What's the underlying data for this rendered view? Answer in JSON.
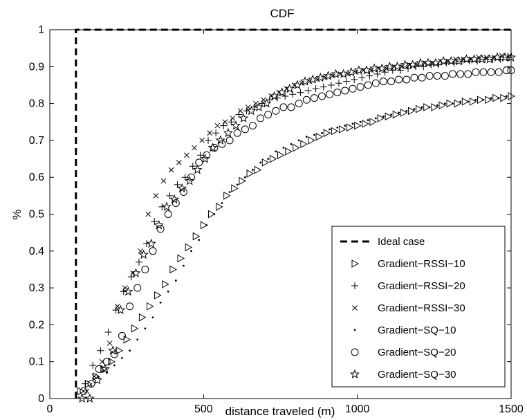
{
  "chart_data": {
    "type": "scatter",
    "title": "CDF",
    "xlabel": "distance traveled (m)",
    "ylabel": "%",
    "xlim": [
      0,
      1500
    ],
    "ylim": [
      0,
      1
    ],
    "xticks": [
      "0",
      "500",
      "1000",
      "1500"
    ],
    "yticks": [
      "0",
      "0.1",
      "0.2",
      "0.3",
      "0.4",
      "0.5",
      "0.6",
      "0.7",
      "0.8",
      "0.9",
      "1"
    ],
    "grid": false,
    "legend_position": "bottom-right",
    "series": [
      {
        "name": "Ideal case",
        "marker": "dashed-line",
        "x": [
          85,
          85,
          1500
        ],
        "y": [
          0,
          1,
          1
        ]
      },
      {
        "name": "Gradient−RSSI−10",
        "marker": "triangle-right",
        "x": [
          100,
          125,
          150,
          175,
          200,
          225,
          250,
          275,
          300,
          325,
          350,
          375,
          400,
          425,
          450,
          475,
          500,
          525,
          550,
          575,
          600,
          625,
          650,
          675,
          700,
          725,
          750,
          775,
          800,
          825,
          850,
          875,
          900,
          925,
          950,
          975,
          1000,
          1025,
          1050,
          1075,
          1100,
          1125,
          1150,
          1175,
          1200,
          1225,
          1250,
          1275,
          1300,
          1325,
          1350,
          1375,
          1400,
          1425,
          1450,
          1475,
          1500
        ],
        "y": [
          0.02,
          0.04,
          0.06,
          0.08,
          0.1,
          0.13,
          0.16,
          0.19,
          0.22,
          0.25,
          0.28,
          0.31,
          0.35,
          0.38,
          0.41,
          0.44,
          0.47,
          0.5,
          0.52,
          0.55,
          0.57,
          0.59,
          0.61,
          0.62,
          0.64,
          0.65,
          0.66,
          0.67,
          0.68,
          0.69,
          0.7,
          0.71,
          0.72,
          0.725,
          0.73,
          0.735,
          0.74,
          0.745,
          0.75,
          0.76,
          0.765,
          0.77,
          0.775,
          0.78,
          0.785,
          0.79,
          0.79,
          0.795,
          0.8,
          0.8,
          0.805,
          0.805,
          0.81,
          0.81,
          0.815,
          0.815,
          0.82
        ]
      },
      {
        "name": "Gradient−RSSI−20",
        "marker": "plus",
        "x": [
          115,
          140,
          165,
          190,
          215,
          240,
          265,
          290,
          315,
          340,
          365,
          390,
          415,
          440,
          465,
          490,
          515,
          540,
          565,
          590,
          615,
          640,
          665,
          690,
          715,
          740,
          765,
          790,
          815,
          840,
          865,
          890,
          915,
          940,
          965,
          990,
          1015,
          1040,
          1065,
          1090,
          1115,
          1140,
          1165,
          1190,
          1215,
          1240,
          1265,
          1290,
          1315,
          1340,
          1365,
          1390,
          1415,
          1440,
          1465,
          1490
        ],
        "y": [
          0.04,
          0.09,
          0.13,
          0.18,
          0.24,
          0.29,
          0.33,
          0.37,
          0.42,
          0.48,
          0.52,
          0.55,
          0.58,
          0.6,
          0.63,
          0.66,
          0.7,
          0.72,
          0.74,
          0.75,
          0.77,
          0.78,
          0.79,
          0.8,
          0.81,
          0.815,
          0.82,
          0.825,
          0.83,
          0.835,
          0.84,
          0.845,
          0.85,
          0.855,
          0.86,
          0.865,
          0.87,
          0.875,
          0.88,
          0.885,
          0.89,
          0.89,
          0.895,
          0.9,
          0.9,
          0.905,
          0.905,
          0.91,
          0.91,
          0.915,
          0.915,
          0.915,
          0.92,
          0.92,
          0.92,
          0.925
        ]
      },
      {
        "name": "Gradient−RSSI−30",
        "marker": "x",
        "x": [
          120,
          145,
          170,
          195,
          220,
          245,
          270,
          295,
          320,
          345,
          370,
          395,
          420,
          445,
          470,
          495,
          520,
          545,
          570,
          595,
          620,
          645,
          670,
          695,
          720,
          745,
          770,
          795,
          820,
          845,
          870,
          895,
          920,
          945,
          970,
          995,
          1020,
          1045,
          1070,
          1095,
          1120,
          1145,
          1170,
          1195,
          1220,
          1245,
          1270,
          1295,
          1320,
          1345,
          1370,
          1395,
          1420,
          1445,
          1470,
          1495
        ],
        "y": [
          0.02,
          0.06,
          0.1,
          0.15,
          0.25,
          0.3,
          0.34,
          0.4,
          0.5,
          0.55,
          0.59,
          0.62,
          0.64,
          0.66,
          0.68,
          0.7,
          0.72,
          0.74,
          0.75,
          0.76,
          0.78,
          0.79,
          0.8,
          0.81,
          0.82,
          0.83,
          0.84,
          0.85,
          0.855,
          0.86,
          0.865,
          0.87,
          0.875,
          0.88,
          0.88,
          0.885,
          0.89,
          0.89,
          0.895,
          0.895,
          0.9,
          0.9,
          0.905,
          0.905,
          0.91,
          0.91,
          0.915,
          0.915,
          0.92,
          0.92,
          0.92,
          0.925,
          0.925,
          0.925,
          0.93,
          0.93
        ]
      },
      {
        "name": "Gradient−SQ−10",
        "marker": "dot",
        "x": [
          110,
          135,
          160,
          185,
          210,
          235,
          260,
          285,
          310,
          335,
          360,
          385,
          410,
          435,
          460,
          485,
          510,
          535,
          560,
          585,
          610,
          635,
          660,
          685,
          710,
          735,
          760,
          785,
          810,
          835,
          860,
          885,
          910,
          935,
          960,
          985,
          1010,
          1035,
          1060,
          1085,
          1110,
          1135,
          1160,
          1185,
          1210,
          1235,
          1260,
          1285,
          1310,
          1335,
          1360,
          1385,
          1410,
          1435,
          1460,
          1485
        ],
        "y": [
          0.02,
          0.035,
          0.055,
          0.07,
          0.09,
          0.11,
          0.13,
          0.16,
          0.19,
          0.22,
          0.26,
          0.29,
          0.32,
          0.36,
          0.4,
          0.43,
          0.47,
          0.5,
          0.53,
          0.56,
          0.58,
          0.6,
          0.62,
          0.64,
          0.65,
          0.67,
          0.68,
          0.69,
          0.7,
          0.71,
          0.715,
          0.72,
          0.73,
          0.735,
          0.74,
          0.745,
          0.75,
          0.755,
          0.76,
          0.765,
          0.77,
          0.775,
          0.78,
          0.785,
          0.79,
          0.79,
          0.795,
          0.8,
          0.8,
          0.805,
          0.805,
          0.81,
          0.81,
          0.815,
          0.815,
          0.82
        ]
      },
      {
        "name": "Gradient−SQ−20",
        "marker": "circle",
        "x": [
          110,
          135,
          160,
          185,
          210,
          235,
          260,
          285,
          310,
          335,
          360,
          385,
          410,
          435,
          460,
          485,
          510,
          535,
          560,
          585,
          610,
          635,
          660,
          685,
          710,
          735,
          760,
          785,
          810,
          835,
          860,
          885,
          910,
          935,
          960,
          985,
          1010,
          1035,
          1060,
          1085,
          1110,
          1135,
          1160,
          1185,
          1210,
          1235,
          1260,
          1285,
          1310,
          1335,
          1360,
          1385,
          1410,
          1435,
          1460,
          1485,
          1500
        ],
        "y": [
          0.02,
          0.04,
          0.08,
          0.1,
          0.12,
          0.17,
          0.25,
          0.3,
          0.35,
          0.4,
          0.46,
          0.5,
          0.53,
          0.56,
          0.6,
          0.64,
          0.66,
          0.68,
          0.69,
          0.7,
          0.72,
          0.73,
          0.74,
          0.76,
          0.77,
          0.78,
          0.79,
          0.79,
          0.8,
          0.81,
          0.815,
          0.82,
          0.825,
          0.83,
          0.835,
          0.84,
          0.845,
          0.85,
          0.855,
          0.86,
          0.86,
          0.865,
          0.865,
          0.87,
          0.87,
          0.875,
          0.875,
          0.875,
          0.88,
          0.88,
          0.88,
          0.885,
          0.885,
          0.885,
          0.885,
          0.89,
          0.89
        ]
      },
      {
        "name": "Gradient−SQ−30",
        "marker": "star",
        "x": [
          105,
          130,
          155,
          180,
          205,
          230,
          255,
          280,
          305,
          330,
          355,
          380,
          405,
          430,
          455,
          480,
          505,
          530,
          555,
          580,
          605,
          630,
          655,
          680,
          705,
          730,
          755,
          780,
          805,
          830,
          855,
          880,
          905,
          930,
          955,
          980,
          1005,
          1030,
          1055,
          1080,
          1105,
          1130,
          1155,
          1180,
          1205,
          1230,
          1255,
          1280,
          1305,
          1330,
          1355,
          1380,
          1405,
          1430,
          1455,
          1480,
          1500
        ],
        "y": [
          0,
          0.0,
          0.05,
          0.08,
          0.13,
          0.24,
          0.29,
          0.34,
          0.39,
          0.42,
          0.47,
          0.52,
          0.54,
          0.57,
          0.59,
          0.62,
          0.65,
          0.68,
          0.7,
          0.72,
          0.74,
          0.76,
          0.78,
          0.79,
          0.8,
          0.82,
          0.83,
          0.84,
          0.85,
          0.86,
          0.865,
          0.87,
          0.875,
          0.88,
          0.88,
          0.885,
          0.89,
          0.89,
          0.895,
          0.895,
          0.9,
          0.9,
          0.905,
          0.905,
          0.91,
          0.91,
          0.91,
          0.915,
          0.915,
          0.915,
          0.92,
          0.92,
          0.92,
          0.92,
          0.925,
          0.925,
          0.925
        ]
      }
    ]
  }
}
